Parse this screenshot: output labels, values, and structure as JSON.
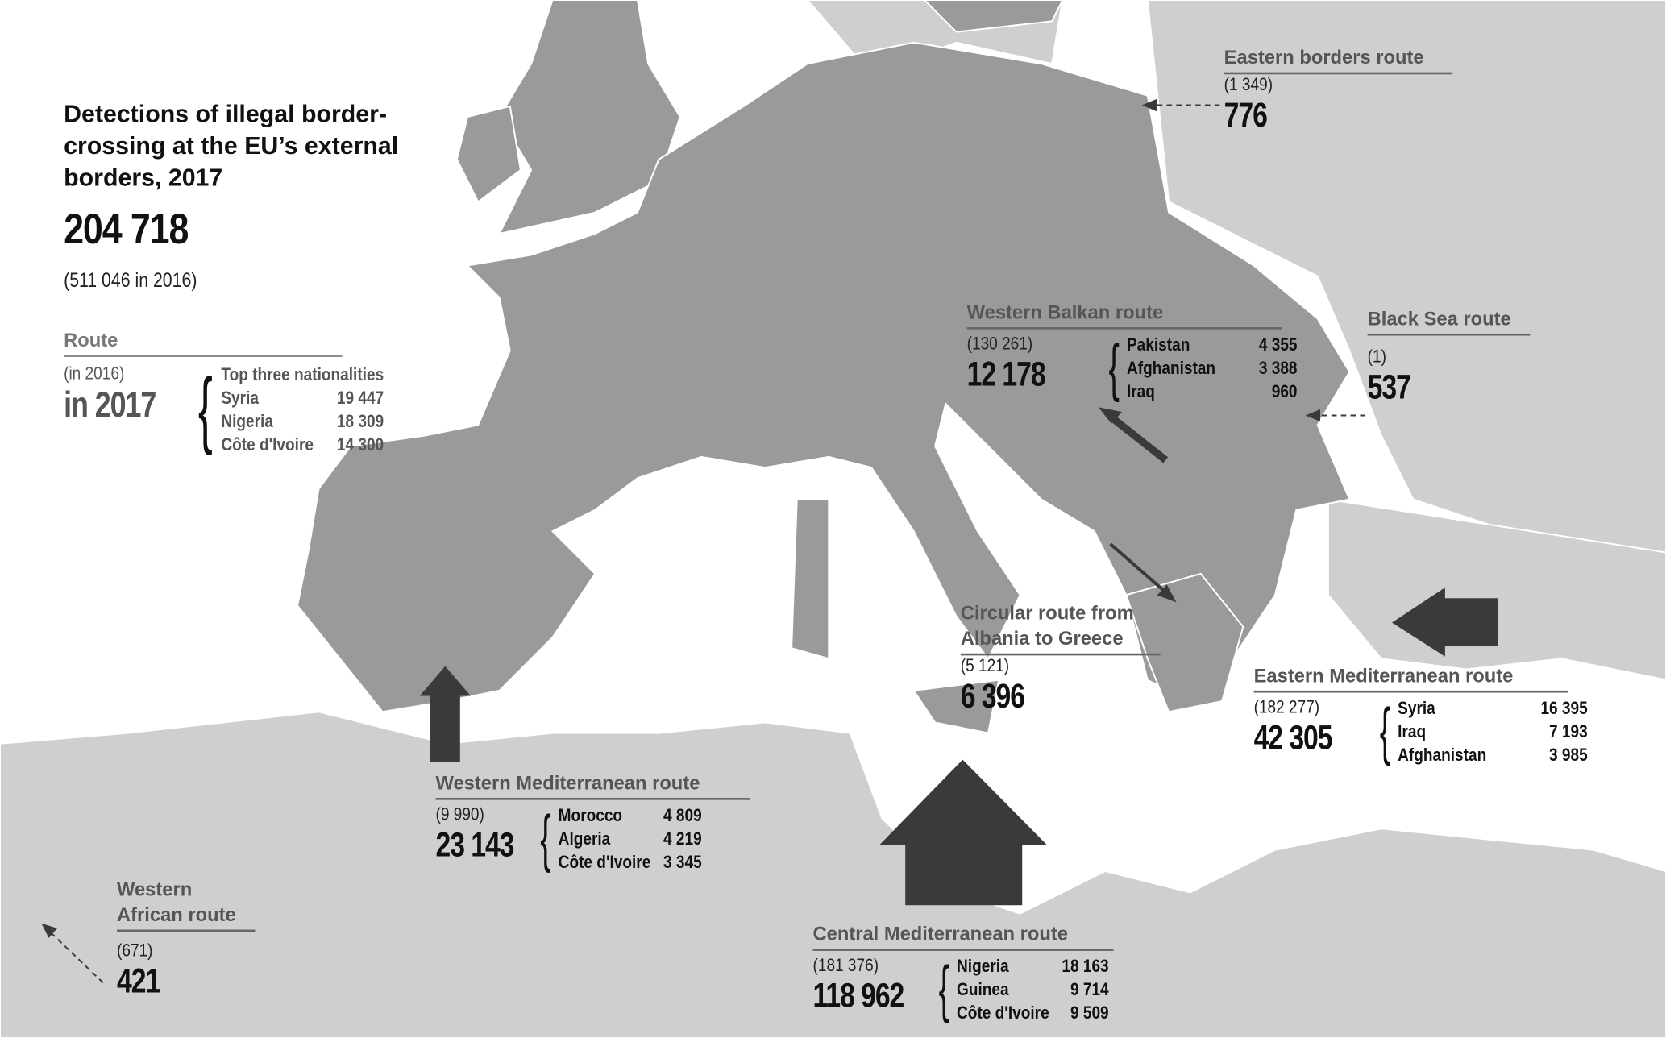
{
  "header": {
    "title_lines": [
      "Detections of illegal border-",
      "crossing at the EU’s external",
      "borders, 2017"
    ],
    "total": "204 718",
    "previous": "(511 046 in 2016)"
  },
  "legend": {
    "route": "Route",
    "previous": "(in 2016)",
    "current": "in 2017",
    "nationalities_header": "Top three  nationalities",
    "nationalities": [
      {
        "country": "Syria",
        "value": "19 447"
      },
      {
        "country": "Nigeria",
        "value": "18 309"
      },
      {
        "country": "Côte d'Ivoire",
        "value": "14 300"
      }
    ]
  },
  "routes": {
    "eastern_borders": {
      "name": "Eastern borders route",
      "previous": "(1 349)",
      "current": "776"
    },
    "western_balkan": {
      "name": "Western Balkan route",
      "previous": "(130 261)",
      "current": "12 178",
      "nationalities": [
        {
          "country": "Pakistan",
          "value": "4 355"
        },
        {
          "country": "Afghanistan",
          "value": "3 388"
        },
        {
          "country": "Iraq",
          "value": "960"
        }
      ]
    },
    "black_sea": {
      "name": "Black Sea route",
      "previous": "(1)",
      "current": "537"
    },
    "circular": {
      "name_lines": [
        "Circular route from",
        "Albania to Greece"
      ],
      "previous": "(5 121)",
      "current": "6 396"
    },
    "eastern_med": {
      "name": "Eastern Mediterranean route",
      "previous": "(182 277)",
      "current": "42 305",
      "nationalities": [
        {
          "country": "Syria",
          "value": "16 395"
        },
        {
          "country": "Iraq",
          "value": "7 193"
        },
        {
          "country": "Afghanistan",
          "value": "3 985"
        }
      ]
    },
    "western_med": {
      "name": "Western Mediterranean route",
      "previous": "(9 990)",
      "current": "23 143",
      "nationalities": [
        {
          "country": "Morocco",
          "value": "4 809"
        },
        {
          "country": "Algeria",
          "value": "4 219"
        },
        {
          "country": "Côte d'Ivoire",
          "value": "3 345"
        }
      ]
    },
    "western_african": {
      "name_lines": [
        "Western",
        "African route"
      ],
      "previous": "(671)",
      "current": "421"
    },
    "central_med": {
      "name": "Central Mediterranean route",
      "previous": "(181 376)",
      "current": "118 962",
      "nationalities": [
        {
          "country": "Nigeria",
          "value": "18 163"
        },
        {
          "country": "Guinea",
          "value": "9 714"
        },
        {
          "country": "Côte d'Ivoire",
          "value": "9 509"
        }
      ]
    }
  },
  "colors": {
    "sea": "#ffffff",
    "eu_land": "#9a9a9a",
    "non_eu_land": "#cfcfcf",
    "arrow": "#3a3a3a",
    "borders": "#ffffff"
  }
}
